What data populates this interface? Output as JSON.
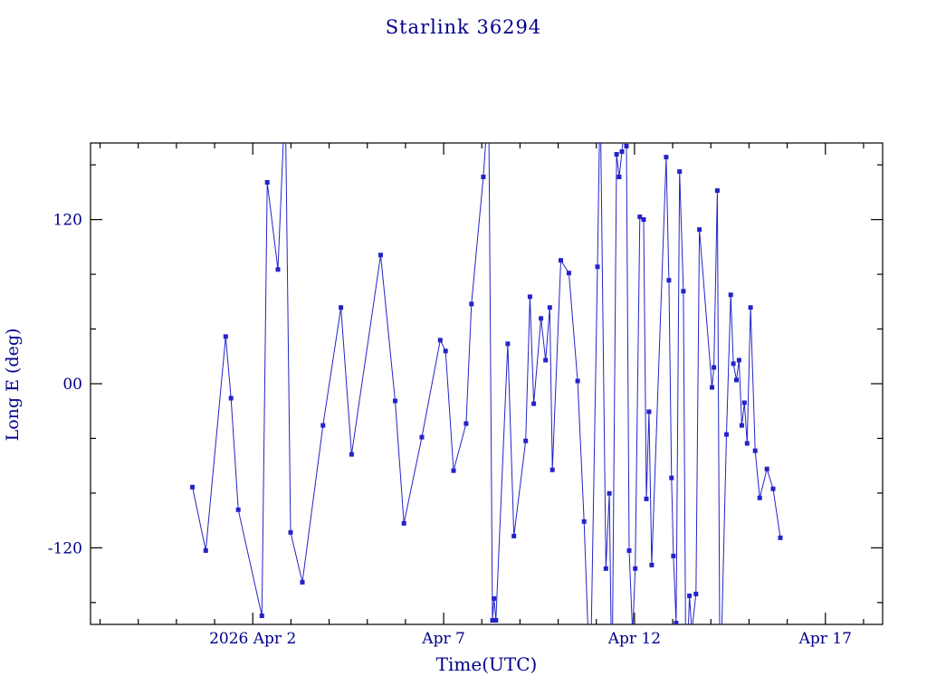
{
  "chart_data": {
    "type": "line",
    "title": "Starlink 36294",
    "xlabel": "Time(UTC)",
    "ylabel": "Long E (deg)",
    "xlim": [
      -2.25,
      18.5
    ],
    "ylim": [
      -176,
      176
    ],
    "x_major_ticks": [
      {
        "value": 2,
        "label": "2026 Apr  2"
      },
      {
        "value": 7,
        "label": "Apr  7"
      },
      {
        "value": 12,
        "label": "Apr 12"
      },
      {
        "value": 17,
        "label": "Apr 17"
      }
    ],
    "x_minor_step": 1,
    "y_major_ticks": [
      {
        "value": -120,
        "label": "-120"
      },
      {
        "value": 0,
        "label": "00"
      },
      {
        "value": 120,
        "label": "120"
      }
    ],
    "y_minor_step": 40,
    "legend": "none",
    "grid": false,
    "axis_color": "#000000",
    "text_color": "#00008b",
    "series_color": "#2323c8",
    "marker": "square",
    "points": [
      [
        0.42,
        -75.6
      ],
      [
        0.77,
        -122.0
      ],
      [
        1.29,
        34.5
      ],
      [
        1.43,
        -10.6
      ],
      [
        1.62,
        -92.2
      ],
      [
        2.24,
        -169.7
      ],
      [
        2.38,
        147.2
      ],
      [
        2.66,
        83.5
      ],
      [
        2.85,
        210.0
      ],
      [
        2.99,
        -108.7
      ],
      [
        3.3,
        -145.2
      ],
      [
        3.84,
        -30.5
      ],
      [
        4.31,
        55.7
      ],
      [
        4.59,
        -51.7
      ],
      [
        5.35,
        94.1
      ],
      [
        5.73,
        -12.6
      ],
      [
        5.96,
        -102.1
      ],
      [
        6.43,
        -39.1
      ],
      [
        6.91,
        31.8
      ],
      [
        7.05,
        23.9
      ],
      [
        7.26,
        -63.6
      ],
      [
        7.59,
        -29.2
      ],
      [
        7.73,
        58.3
      ],
      [
        8.04,
        151.2
      ],
      [
        8.18,
        208.0
      ],
      [
        8.28,
        -173.0
      ],
      [
        8.32,
        -157.1
      ],
      [
        8.37,
        -173.0
      ],
      [
        8.68,
        29.2
      ],
      [
        8.84,
        -111.4
      ],
      [
        9.15,
        -41.8
      ],
      [
        9.26,
        63.6
      ],
      [
        9.36,
        -14.6
      ],
      [
        9.55,
        47.7
      ],
      [
        9.67,
        17.2
      ],
      [
        9.78,
        55.7
      ],
      [
        9.85,
        -63.0
      ],
      [
        10.07,
        90.2
      ],
      [
        10.28,
        80.9
      ],
      [
        10.51,
        2.0
      ],
      [
        10.68,
        -100.8
      ],
      [
        10.84,
        -225.0
      ],
      [
        11.03,
        85.5
      ],
      [
        11.1,
        215.0
      ],
      [
        11.25,
        -135.2
      ],
      [
        11.34,
        -80.2
      ],
      [
        11.41,
        -228.0
      ],
      [
        11.53,
        167.7
      ],
      [
        11.6,
        151.2
      ],
      [
        11.67,
        169.7
      ],
      [
        11.72,
        185.0
      ],
      [
        11.79,
        173.7
      ],
      [
        11.86,
        -122.0
      ],
      [
        11.95,
        -183.0
      ],
      [
        12.02,
        -135.2
      ],
      [
        12.14,
        122.0
      ],
      [
        12.24,
        120.0
      ],
      [
        12.31,
        -84.2
      ],
      [
        12.38,
        -20.5
      ],
      [
        12.45,
        -132.6
      ],
      [
        12.83,
        165.7
      ],
      [
        12.9,
        75.6
      ],
      [
        12.97,
        -68.9
      ],
      [
        13.02,
        -126.0
      ],
      [
        13.09,
        -175.0
      ],
      [
        13.18,
        155.1
      ],
      [
        13.28,
        67.6
      ],
      [
        13.35,
        -229.0
      ],
      [
        13.44,
        -155.1
      ],
      [
        13.5,
        -181.0
      ],
      [
        13.61,
        -153.8
      ],
      [
        13.7,
        112.7
      ],
      [
        14.03,
        -2.7
      ],
      [
        14.08,
        11.9
      ],
      [
        14.17,
        141.2
      ],
      [
        14.24,
        -232.0
      ],
      [
        14.41,
        -37.1
      ],
      [
        14.52,
        65.0
      ],
      [
        14.59,
        14.6
      ],
      [
        14.67,
        2.7
      ],
      [
        14.74,
        17.2
      ],
      [
        14.81,
        -30.5
      ],
      [
        14.88,
        -13.9
      ],
      [
        14.95,
        -43.7
      ],
      [
        15.04,
        55.7
      ],
      [
        15.16,
        -49.0
      ],
      [
        15.28,
        -83.5
      ],
      [
        15.47,
        -62.3
      ],
      [
        15.63,
        -76.9
      ],
      [
        15.82,
        -112.7
      ]
    ]
  }
}
